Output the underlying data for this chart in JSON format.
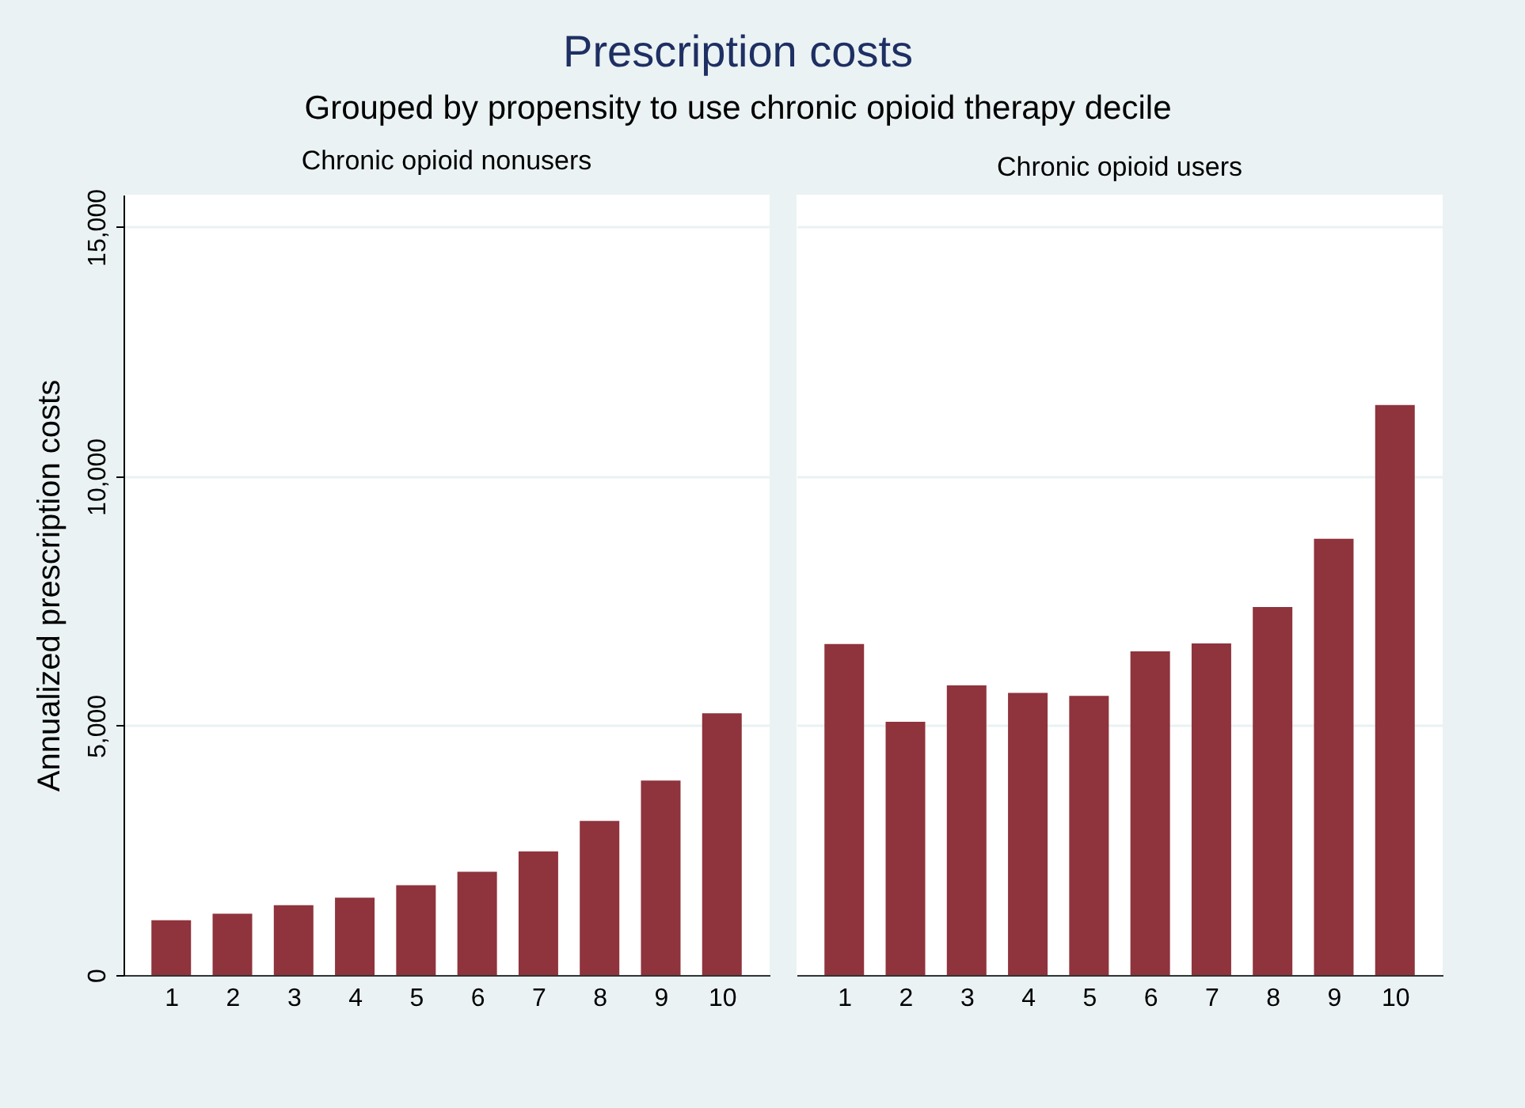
{
  "chart_data": [
    {
      "type": "bar",
      "title": "Prescription costs",
      "subtitle": "Grouped by propensity to use chronic opioid therapy decile",
      "annotations": [
        "Chronic opioid nonusers"
      ],
      "ylabel": "Annualized prescription costs",
      "categories": [
        "1",
        "2",
        "3",
        "4",
        "5",
        "6",
        "7",
        "8",
        "9",
        "10"
      ],
      "values": [
        1100,
        1230,
        1400,
        1550,
        1800,
        2070,
        2480,
        3090,
        3900,
        5250
      ],
      "color": "#8f333c",
      "ylim": [
        0,
        15650
      ],
      "yticks": [
        {
          "value": 0,
          "label": "0"
        },
        {
          "value": 5000,
          "label": "5,000"
        },
        {
          "value": 10000,
          "label": "10,000"
        },
        {
          "value": 15000,
          "label": "15,000"
        }
      ],
      "grid": "y"
    },
    {
      "type": "bar",
      "annotations": [
        "Chronic opioid users"
      ],
      "categories": [
        "1",
        "2",
        "3",
        "4",
        "5",
        "6",
        "7",
        "8",
        "9",
        "10"
      ],
      "values": [
        6640,
        5080,
        5810,
        5660,
        5600,
        6490,
        6650,
        7380,
        8750,
        11430
      ],
      "color": "#8f333c",
      "ylim": [
        0,
        15650
      ],
      "yticks": [
        0,
        5000,
        10000,
        15000
      ],
      "grid": "y",
      "tick_labels": "x"
    }
  ]
}
